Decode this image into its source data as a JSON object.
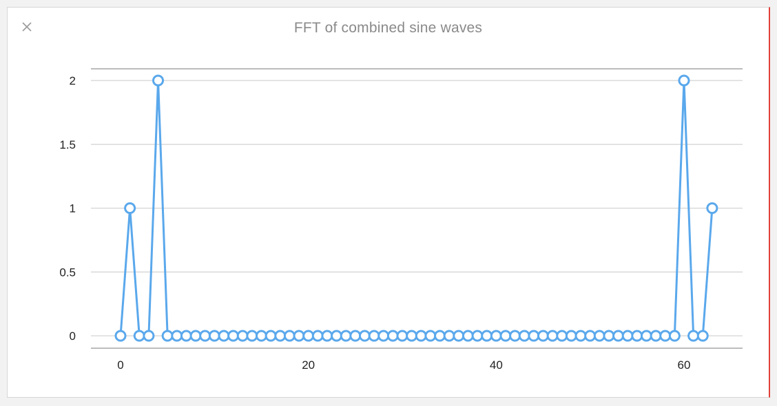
{
  "window": {
    "close_icon": "close-icon"
  },
  "colors": {
    "series": "#5aa8ec",
    "grid": "#d3d3d3",
    "axis": "#a6a6a6",
    "close": "#9a9a9a"
  },
  "chart_data": {
    "type": "line",
    "title": "FFT of combined sine waves",
    "xlabel": "",
    "ylabel": "",
    "xlim": [
      -3,
      66
    ],
    "ylim": [
      -0.1,
      2.1
    ],
    "x_ticks": [
      0,
      20,
      40,
      60
    ],
    "x_tick_labels": [
      "0",
      "20",
      "40",
      "60"
    ],
    "y_ticks": [
      0,
      0.5,
      1,
      1.5,
      2
    ],
    "y_tick_labels": [
      "0",
      "0.5",
      "1",
      "1.5",
      "2"
    ],
    "grid": true,
    "legend": "none",
    "markers": "hollow-circle",
    "series": [
      {
        "x": [
          0,
          1,
          2,
          3,
          4,
          5,
          6,
          7,
          8,
          9,
          10,
          11,
          12,
          13,
          14,
          15,
          16,
          17,
          18,
          19,
          20,
          21,
          22,
          23,
          24,
          25,
          26,
          27,
          28,
          29,
          30,
          31,
          32,
          33,
          34,
          35,
          36,
          37,
          38,
          39,
          40,
          41,
          42,
          43,
          44,
          45,
          46,
          47,
          48,
          49,
          50,
          51,
          52,
          53,
          54,
          55,
          56,
          57,
          58,
          59,
          60,
          61,
          62,
          63
        ],
        "values": [
          0,
          1,
          0,
          0,
          2,
          0,
          0,
          0,
          0,
          0,
          0,
          0,
          0,
          0,
          0,
          0,
          0,
          0,
          0,
          0,
          0,
          0,
          0,
          0,
          0,
          0,
          0,
          0,
          0,
          0,
          0,
          0,
          0,
          0,
          0,
          0,
          0,
          0,
          0,
          0,
          0,
          0,
          0,
          0,
          0,
          0,
          0,
          0,
          0,
          0,
          0,
          0,
          0,
          0,
          0,
          0,
          0,
          0,
          0,
          0,
          2,
          0,
          0,
          1
        ]
      }
    ]
  }
}
